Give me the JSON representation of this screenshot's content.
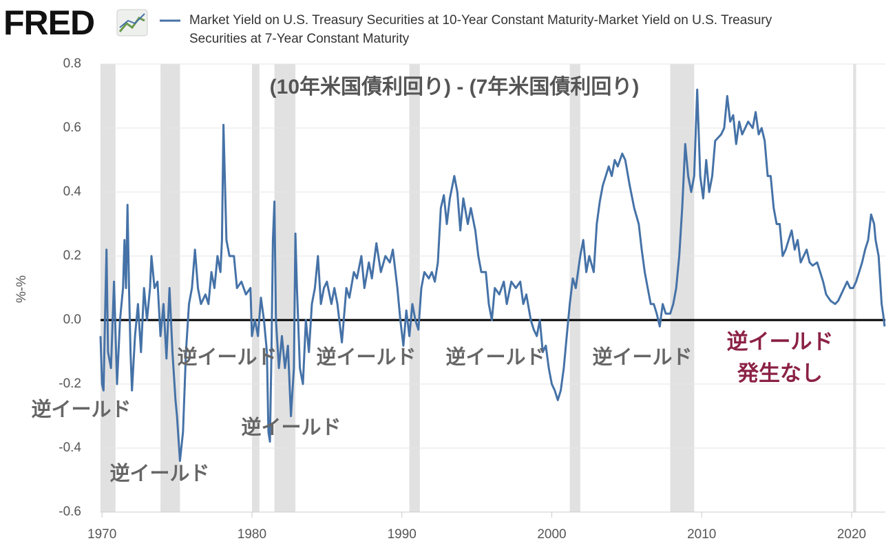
{
  "chart_data": {
    "type": "line",
    "logo_text": "FRED",
    "title": "(10年米国債利回り) - (7年米国債利回り)",
    "ylabel": "%-%",
    "annotations": [
      "逆イールド",
      "逆イールド",
      "逆イールド",
      "逆イールド",
      "逆イールド",
      "逆イールド",
      "逆イールド"
    ],
    "note": [
      "逆イールド",
      "発生なし"
    ],
    "xlim": [
      1969.9,
      2022.25
    ],
    "xticks": [
      1970,
      1980,
      1990,
      2000,
      2010,
      2020
    ],
    "ylim": [
      -0.6,
      0.8
    ],
    "yticks": [
      {
        "value": 0.8,
        "label": "0.8"
      },
      {
        "value": 0.6,
        "label": "0.6"
      },
      {
        "value": 0.4,
        "label": "0.4"
      },
      {
        "value": 0.2,
        "label": "0.2"
      },
      {
        "value": 0,
        "label": "0.0"
      },
      {
        "value": -0.2,
        "label": "-0.2"
      },
      {
        "value": -0.4,
        "label": "-0.4"
      },
      {
        "value": -0.6,
        "label": "-0.6"
      }
    ],
    "grid": true,
    "zero_line": 0,
    "recessions": [
      [
        1969.9,
        1970.9
      ],
      [
        1973.9,
        1975.2
      ],
      [
        1980.0,
        1980.5
      ],
      [
        1981.5,
        1982.9
      ],
      [
        1990.5,
        1991.2
      ],
      [
        2001.2,
        2001.9
      ],
      [
        2007.9,
        2009.5
      ],
      [
        2020.1,
        2020.3
      ]
    ],
    "x": [
      1969.9,
      1970.0,
      1970.1,
      1970.2,
      1970.3,
      1970.4,
      1970.6,
      1970.8,
      1971.0,
      1971.2,
      1971.4,
      1971.5,
      1971.6,
      1971.7,
      1971.8,
      1971.9,
      1972.0,
      1972.2,
      1972.4,
      1972.6,
      1972.8,
      1973.0,
      1973.2,
      1973.3,
      1973.5,
      1973.7,
      1973.9,
      1974.1,
      1974.3,
      1974.5,
      1974.7,
      1974.9,
      1975.0,
      1975.2,
      1975.4,
      1975.6,
      1975.8,
      1976.0,
      1976.2,
      1976.4,
      1976.6,
      1976.9,
      1977.1,
      1977.3,
      1977.5,
      1977.7,
      1977.9,
      1978.0,
      1978.1,
      1978.3,
      1978.5,
      1978.8,
      1979.0,
      1979.3,
      1979.6,
      1979.9,
      1980.0,
      1980.2,
      1980.4,
      1980.6,
      1980.8,
      1981.0,
      1981.1,
      1981.2,
      1981.3,
      1981.4,
      1981.5,
      1981.6,
      1981.8,
      1982.0,
      1982.2,
      1982.4,
      1982.6,
      1982.8,
      1982.9,
      1983.0,
      1983.2,
      1983.4,
      1983.6,
      1983.8,
      1984.0,
      1984.2,
      1984.4,
      1984.6,
      1984.8,
      1985.0,
      1985.3,
      1985.5,
      1985.7,
      1986.0,
      1986.3,
      1986.5,
      1986.8,
      1987.0,
      1987.3,
      1987.5,
      1987.8,
      1988.0,
      1988.3,
      1988.6,
      1988.9,
      1989.2,
      1989.4,
      1989.7,
      1989.9,
      1990.1,
      1990.3,
      1990.5,
      1990.7,
      1990.9,
      1991.1,
      1991.3,
      1991.5,
      1991.8,
      1992.0,
      1992.2,
      1992.4,
      1992.6,
      1992.8,
      1993.0,
      1993.2,
      1993.5,
      1993.7,
      1993.9,
      1994.1,
      1994.4,
      1994.6,
      1994.9,
      1995.1,
      1995.3,
      1995.6,
      1995.8,
      1996.0,
      1996.2,
      1996.5,
      1996.8,
      1997.0,
      1997.3,
      1997.6,
      1997.9,
      1998.1,
      1998.3,
      1998.6,
      1998.8,
      1999.0,
      1999.2,
      1999.4,
      1999.6,
      1999.8,
      2000.0,
      2000.2,
      2000.4,
      2000.6,
      2000.8,
      2001.0,
      2001.2,
      2001.4,
      2001.6,
      2001.9,
      2002.1,
      2002.3,
      2002.5,
      2002.8,
      2003.0,
      2003.2,
      2003.4,
      2003.6,
      2003.8,
      2004.0,
      2004.2,
      2004.4,
      2004.7,
      2004.9,
      2005.2,
      2005.5,
      2005.8,
      2006.0,
      2006.2,
      2006.4,
      2006.6,
      2006.8,
      2007.0,
      2007.2,
      2007.4,
      2007.6,
      2007.9,
      2008.1,
      2008.3,
      2008.5,
      2008.7,
      2008.9,
      2009.1,
      2009.3,
      2009.5,
      2009.7,
      2009.9,
      2010.1,
      2010.3,
      2010.5,
      2010.7,
      2010.9,
      2011.1,
      2011.3,
      2011.5,
      2011.7,
      2011.9,
      2012.1,
      2012.3,
      2012.5,
      2012.7,
      2012.9,
      2013.1,
      2013.4,
      2013.6,
      2013.8,
      2014.0,
      2014.2,
      2014.4,
      2014.6,
      2014.8,
      2015.0,
      2015.2,
      2015.4,
      2015.6,
      2015.8,
      2016.0,
      2016.2,
      2016.4,
      2016.6,
      2016.8,
      2017.0,
      2017.2,
      2017.4,
      2017.7,
      2017.9,
      2018.1,
      2018.3,
      2018.6,
      2018.9,
      2019.1,
      2019.3,
      2019.5,
      2019.7,
      2019.9,
      2020.1,
      2020.3,
      2020.5,
      2020.7,
      2020.9,
      2021.1,
      2021.3,
      2021.5,
      2021.6,
      2021.8,
      2022.0,
      2022.1,
      2022.2
    ],
    "series": [
      {
        "name": "Market Yield on U.S. Treasury Securities at 10-Year Constant Maturity-Market Yield on U.S. Treasury Securities at 7-Year Constant Maturity",
        "color": "#4572a7",
        "values": [
          -0.05,
          -0.2,
          -0.22,
          0.0,
          0.22,
          -0.1,
          -0.15,
          0.12,
          -0.2,
          0.0,
          0.1,
          0.25,
          0.1,
          0.36,
          0.1,
          -0.1,
          -0.22,
          -0.05,
          0.05,
          -0.1,
          0.1,
          0.0,
          0.1,
          0.2,
          0.1,
          0.12,
          -0.05,
          0.05,
          -0.12,
          0.1,
          -0.1,
          -0.25,
          -0.3,
          -0.44,
          -0.35,
          -0.1,
          0.05,
          0.1,
          0.22,
          0.1,
          0.05,
          0.08,
          0.05,
          0.15,
          0.1,
          0.2,
          0.15,
          0.25,
          0.61,
          0.25,
          0.2,
          0.2,
          0.1,
          0.12,
          0.08,
          0.1,
          -0.05,
          0.0,
          -0.05,
          0.07,
          0.0,
          -0.1,
          -0.35,
          -0.38,
          -0.1,
          0.25,
          0.37,
          0.0,
          -0.15,
          -0.05,
          -0.15,
          -0.08,
          -0.3,
          -0.15,
          0.27,
          0.1,
          -0.15,
          -0.2,
          0.0,
          -0.1,
          0.05,
          0.1,
          0.2,
          0.05,
          0.1,
          0.12,
          0.05,
          0.1,
          0.05,
          -0.07,
          0.1,
          0.07,
          0.15,
          0.13,
          0.2,
          0.1,
          0.18,
          0.13,
          0.24,
          0.15,
          0.2,
          0.18,
          0.22,
          0.1,
          0.0,
          -0.08,
          0.03,
          -0.05,
          0.05,
          0.0,
          -0.03,
          0.1,
          0.15,
          0.13,
          0.15,
          0.12,
          0.18,
          0.35,
          0.39,
          0.3,
          0.38,
          0.45,
          0.4,
          0.28,
          0.38,
          0.3,
          0.35,
          0.28,
          0.2,
          0.15,
          0.15,
          0.05,
          0.0,
          0.1,
          0.08,
          0.12,
          0.05,
          0.12,
          0.1,
          0.12,
          0.05,
          0.08,
          0.0,
          -0.03,
          -0.05,
          0.0,
          -0.1,
          -0.08,
          -0.15,
          -0.2,
          -0.22,
          -0.25,
          -0.22,
          -0.15,
          -0.05,
          0.05,
          0.13,
          0.1,
          0.2,
          0.25,
          0.15,
          0.2,
          0.15,
          0.3,
          0.37,
          0.42,
          0.45,
          0.48,
          0.45,
          0.5,
          0.48,
          0.52,
          0.5,
          0.42,
          0.35,
          0.3,
          0.22,
          0.15,
          0.1,
          0.05,
          0.05,
          0.02,
          -0.02,
          0.05,
          0.02,
          0.02,
          0.05,
          0.1,
          0.2,
          0.35,
          0.55,
          0.45,
          0.4,
          0.45,
          0.72,
          0.45,
          0.38,
          0.5,
          0.4,
          0.45,
          0.56,
          0.57,
          0.58,
          0.6,
          0.7,
          0.62,
          0.64,
          0.55,
          0.62,
          0.58,
          0.6,
          0.62,
          0.6,
          0.65,
          0.58,
          0.6,
          0.56,
          0.45,
          0.45,
          0.35,
          0.3,
          0.3,
          0.2,
          0.22,
          0.25,
          0.28,
          0.22,
          0.25,
          0.18,
          0.2,
          0.22,
          0.18,
          0.17,
          0.18,
          0.15,
          0.12,
          0.08,
          0.06,
          0.05,
          0.06,
          0.08,
          0.1,
          0.12,
          0.1,
          0.1,
          0.12,
          0.15,
          0.18,
          0.22,
          0.25,
          0.33,
          0.3,
          0.25,
          0.2,
          0.05,
          0.02,
          -0.02
        ]
      }
    ]
  }
}
